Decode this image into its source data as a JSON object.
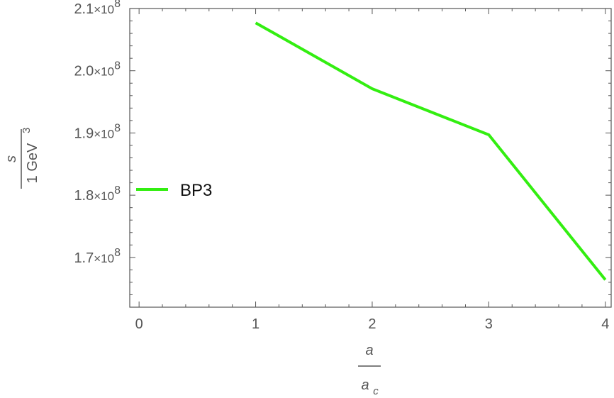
{
  "chart_data": {
    "type": "line",
    "title": "",
    "xlabel": {
      "numerator": "a",
      "denominator_base": "a",
      "denominator_sub": "c"
    },
    "ylabel": {
      "numerator": "s",
      "denominator": "1 GeV",
      "denominator_exp": "3"
    },
    "xlim": [
      -0.08,
      4.05
    ],
    "ylim": [
      162000000.0,
      210000000.0
    ],
    "x_ticks": [
      0,
      1,
      2,
      3,
      4
    ],
    "y_ticks": [
      {
        "value": 170000000.0,
        "mantissa": "1.7",
        "base": "×10",
        "exp": "8"
      },
      {
        "value": 180000000.0,
        "mantissa": "1.8",
        "base": "×10",
        "exp": "8"
      },
      {
        "value": 190000000.0,
        "mantissa": "1.9",
        "base": "×10",
        "exp": "8"
      },
      {
        "value": 200000000.0,
        "mantissa": "2.0",
        "base": "×10",
        "exp": "8"
      },
      {
        "value": 210000000.0,
        "mantissa": "2.1",
        "base": "×10",
        "exp": "8"
      }
    ],
    "series": [
      {
        "name": "BP3",
        "color": "#33ee11",
        "x": [
          1,
          2,
          3,
          4
        ],
        "y": [
          207700000.0,
          197100000.0,
          189700000.0,
          166400000.0
        ]
      }
    ],
    "legend": {
      "placement": "left-middle"
    },
    "grid": false
  }
}
